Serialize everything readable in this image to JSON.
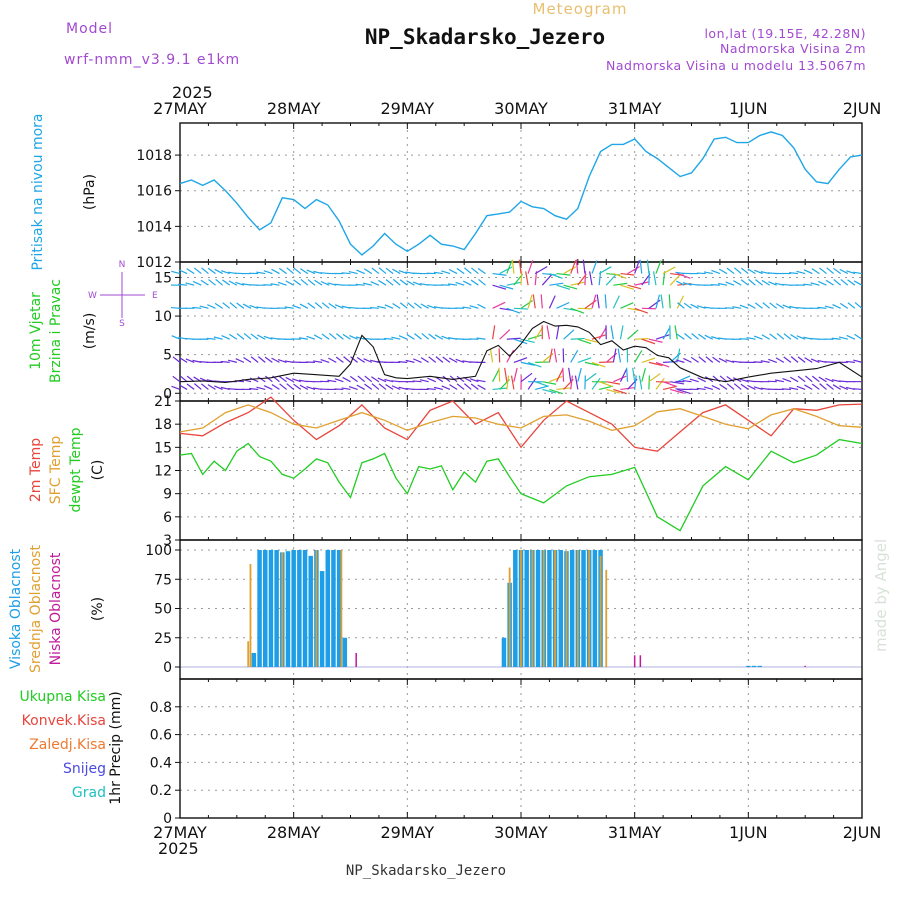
{
  "header": {
    "subtitle": "Meteogram",
    "title": "NP_Skadarsko_Jezero",
    "model_label": "Model",
    "model_name": "wrf-nmm_v3.9.1  e1km",
    "lonlat": "lon,lat (19.15E, 42.28N)",
    "elevation": "Nadmorska Visina 2m",
    "model_elevation": "Nadmorska Visina u modelu 13.5067m",
    "year": "2025",
    "footer_station": "NP_Skadarsko_Jezero",
    "watermark": "made by Angel"
  },
  "colors": {
    "pressure": "#1ea6e6",
    "temp2m": "#e8453c",
    "sfc_temp": "#e0a030",
    "dewpt": "#22cc22",
    "high_cloud": "#1e9ee6",
    "mid_cloud": "#e0a030",
    "low_cloud": "#c0199a",
    "purple_text": "#a24ad0"
  },
  "chart_data": [
    {
      "type": "line",
      "panel": "pressure",
      "ylabel_left": "Pritisak na nivou mora",
      "ylabel_unit": "(hPa)",
      "ylim": [
        1012,
        1019.8
      ],
      "yticks": [
        1012,
        1014,
        1016,
        1018
      ],
      "x_categories": [
        "27MAY",
        "28MAY",
        "29MAY",
        "30MAY",
        "31MAY",
        "1JUN",
        "2JUN"
      ],
      "series": [
        {
          "x": [
            0,
            0.1,
            0.2,
            0.3,
            0.4,
            0.5,
            0.6,
            0.7,
            0.8,
            0.9,
            1.0,
            1.1,
            1.2,
            1.3,
            1.4,
            1.5,
            1.6,
            1.7,
            1.8,
            1.9,
            2.0,
            2.1,
            2.2,
            2.3,
            2.4,
            2.5,
            2.6,
            2.7,
            2.8,
            2.9,
            3.0,
            3.1,
            3.2,
            3.3,
            3.4,
            3.5,
            3.6,
            3.7,
            3.8,
            3.9,
            4.0,
            4.1,
            4.2,
            4.3,
            4.4,
            4.5,
            4.6,
            4.7,
            4.8,
            4.9,
            5.0,
            5.1,
            5.2,
            5.3,
            5.4,
            5.5,
            5.6,
            5.7,
            5.8,
            5.9,
            6.0
          ],
          "values": [
            1016.4,
            1016.6,
            1016.3,
            1016.6,
            1016.0,
            1015.3,
            1014.5,
            1013.8,
            1014.2,
            1015.6,
            1015.5,
            1015.0,
            1015.5,
            1015.2,
            1014.3,
            1013.0,
            1012.4,
            1012.9,
            1013.6,
            1013.0,
            1012.6,
            1013.0,
            1013.5,
            1013.0,
            1012.9,
            1012.7,
            1013.6,
            1014.6,
            1014.7,
            1014.8,
            1015.4,
            1015.1,
            1015.0,
            1014.6,
            1014.4,
            1015.0,
            1016.8,
            1018.2,
            1018.6,
            1018.6,
            1018.9,
            1018.2,
            1017.8,
            1017.3,
            1016.8,
            1017.0,
            1017.8,
            1018.9,
            1019.0,
            1018.7,
            1018.7,
            1019.1,
            1019.3,
            1019.1,
            1018.4,
            1017.2,
            1016.5,
            1016.4,
            1017.2,
            1017.9,
            1018.0
          ]
        }
      ]
    },
    {
      "type": "line",
      "panel": "wind",
      "ylabel_left": [
        "10m Vjetar",
        "Brzina i Pravac"
      ],
      "ylabel_unit": "(m/s)",
      "compass": [
        "N",
        "W",
        "E",
        "S"
      ],
      "ylim": [
        -1,
        17
      ],
      "yticks": [
        0,
        5,
        10,
        15
      ],
      "series": [
        {
          "name": "wind-speed",
          "x": [
            0,
            0.2,
            0.4,
            0.6,
            0.8,
            1.0,
            1.2,
            1.4,
            1.5,
            1.6,
            1.7,
            1.8,
            1.9,
            2.0,
            2.2,
            2.4,
            2.6,
            2.7,
            2.8,
            2.9,
            3.0,
            3.1,
            3.2,
            3.3,
            3.4,
            3.5,
            3.6,
            3.7,
            3.8,
            3.9,
            4.0,
            4.1,
            4.2,
            4.3,
            4.4,
            4.6,
            4.8,
            5.0,
            5.2,
            5.4,
            5.6,
            5.8,
            6.0
          ],
          "values": [
            1.5,
            1.6,
            1.4,
            1.8,
            2.0,
            2.6,
            2.4,
            2.2,
            3.8,
            7.5,
            6.0,
            2.4,
            2.0,
            1.9,
            2.2,
            1.8,
            2.2,
            5.5,
            6.2,
            4.8,
            6.4,
            8.4,
            9.3,
            8.7,
            8.8,
            8.6,
            7.9,
            6.3,
            6.8,
            5.6,
            6.1,
            5.9,
            4.9,
            4.6,
            3.3,
            2.0,
            1.5,
            2.1,
            2.6,
            2.9,
            3.2,
            4.0,
            2.1
          ]
        }
      ]
    },
    {
      "type": "line",
      "panel": "temperature",
      "ylabel_left": [
        "2m Temp",
        "SFC Temp",
        "dewpt Temp"
      ],
      "ylabel_unit": "(C)",
      "ylim": [
        3,
        21
      ],
      "yticks": [
        3,
        6,
        9,
        12,
        15,
        18,
        21
      ],
      "series": [
        {
          "name": "2m Temp",
          "x": [
            0,
            0.2,
            0.4,
            0.6,
            0.8,
            0.9,
            1.0,
            1.2,
            1.4,
            1.6,
            1.7,
            1.8,
            2.0,
            2.2,
            2.4,
            2.6,
            2.8,
            3.0,
            3.2,
            3.4,
            3.6,
            3.8,
            4.0,
            4.2,
            4.4,
            4.6,
            4.8,
            5.0,
            5.2,
            5.4,
            5.6,
            5.8,
            6.0
          ],
          "values": [
            16.8,
            16.5,
            18.2,
            19.5,
            21.5,
            20.0,
            18.5,
            16.0,
            17.8,
            20.5,
            19.0,
            17.5,
            16.0,
            19.8,
            21.0,
            18.0,
            19.5,
            15.0,
            18.5,
            21.0,
            19.5,
            18.0,
            15.0,
            14.5,
            17.0,
            19.5,
            20.5,
            18.5,
            16.5,
            20.0,
            19.8,
            20.5,
            20.6
          ]
        },
        {
          "name": "SFC Temp",
          "x": [
            0,
            0.2,
            0.4,
            0.6,
            0.8,
            1.0,
            1.2,
            1.4,
            1.6,
            1.8,
            2.0,
            2.2,
            2.4,
            2.6,
            2.8,
            3.0,
            3.2,
            3.4,
            3.6,
            3.8,
            4.0,
            4.2,
            4.4,
            4.6,
            4.8,
            5.0,
            5.2,
            5.4,
            5.6,
            5.8,
            6.0
          ],
          "values": [
            17.0,
            17.5,
            19.5,
            20.5,
            19.5,
            18.0,
            17.5,
            18.5,
            19.5,
            18.5,
            17.2,
            18.2,
            19.0,
            18.8,
            18.0,
            17.5,
            19.0,
            19.2,
            18.4,
            17.2,
            17.8,
            19.6,
            20.0,
            19.0,
            18.0,
            17.4,
            19.2,
            20.0,
            19.0,
            17.8,
            17.6
          ]
        },
        {
          "name": "dewpt Temp",
          "x": [
            0,
            0.1,
            0.2,
            0.3,
            0.4,
            0.5,
            0.6,
            0.7,
            0.8,
            0.9,
            1.0,
            1.1,
            1.2,
            1.3,
            1.4,
            1.5,
            1.6,
            1.7,
            1.8,
            1.9,
            2.0,
            2.1,
            2.2,
            2.3,
            2.4,
            2.5,
            2.6,
            2.7,
            2.8,
            2.9,
            3.0,
            3.2,
            3.4,
            3.6,
            3.8,
            4.0,
            4.2,
            4.4,
            4.6,
            4.8,
            5.0,
            5.2,
            5.4,
            5.6,
            5.8,
            6.0
          ],
          "values": [
            14.0,
            14.2,
            11.5,
            13.2,
            12.0,
            14.5,
            15.5,
            13.8,
            13.2,
            11.5,
            11.0,
            12.2,
            13.5,
            13.0,
            10.5,
            8.5,
            13.0,
            13.5,
            14.2,
            11.0,
            9.0,
            12.5,
            12.2,
            12.6,
            9.5,
            11.8,
            10.5,
            13.2,
            13.5,
            11.2,
            9.0,
            7.8,
            10.0,
            11.2,
            11.5,
            12.4,
            6.0,
            4.2,
            10.0,
            12.5,
            10.8,
            14.5,
            13.0,
            14.0,
            16.0,
            15.5
          ]
        }
      ]
    },
    {
      "type": "bar",
      "panel": "clouds",
      "ylabel_left": [
        "Visoka Oblacnost",
        "Srednja Oblacnost",
        "Niska Oblacnost"
      ],
      "ylabel_unit": "(%)",
      "ylim": [
        0,
        100
      ],
      "yticks": [
        0,
        25,
        50,
        75,
        100
      ],
      "series": [
        {
          "name": "Visoka Oblacnost",
          "x": [
            0.65,
            0.7,
            0.75,
            0.8,
            0.85,
            0.9,
            0.95,
            1.0,
            1.05,
            1.1,
            1.15,
            1.2,
            1.25,
            1.3,
            1.35,
            1.4,
            1.45,
            2.85,
            2.9,
            2.95,
            3.0,
            3.05,
            3.1,
            3.15,
            3.2,
            3.25,
            3.3,
            3.35,
            3.4,
            3.45,
            3.5,
            3.55,
            3.6,
            3.65,
            3.7,
            5.0,
            5.05,
            5.1
          ],
          "values": [
            12,
            100,
            100,
            100,
            100,
            98,
            99,
            100,
            100,
            100,
            95,
            100,
            82,
            100,
            100,
            100,
            25,
            25,
            72,
            100,
            100,
            100,
            100,
            100,
            100,
            100,
            100,
            100,
            99,
            100,
            100,
            100,
            100,
            100,
            100,
            1,
            1,
            1
          ]
        },
        {
          "name": "Srednja Oblacnost",
          "x": [
            0.6,
            0.62,
            0.9,
            1.2,
            1.42,
            2.9,
            3.0,
            3.1,
            3.2,
            3.3,
            3.4,
            3.5,
            3.6,
            3.7,
            3.75
          ],
          "values": [
            22,
            88,
            98,
            100,
            100,
            85,
            100,
            100,
            100,
            100,
            99,
            100,
            100,
            95,
            83
          ]
        },
        {
          "name": "Niska Oblacnost",
          "x": [
            1.55,
            4.0,
            4.05,
            5.5
          ],
          "values": [
            12,
            10,
            10,
            1
          ]
        }
      ]
    },
    {
      "type": "bar",
      "panel": "precipitation",
      "ylabel_unit": "1hr Precip (mm)",
      "legend": [
        "Ukupna Kisa",
        "Konvek.Kisa",
        "Zaledj.Kisa",
        "Snijeg",
        "Grad"
      ],
      "ylim": [
        0,
        1
      ],
      "yticks": [
        0,
        0.2,
        0.4,
        0.6,
        0.8
      ],
      "series": []
    }
  ]
}
